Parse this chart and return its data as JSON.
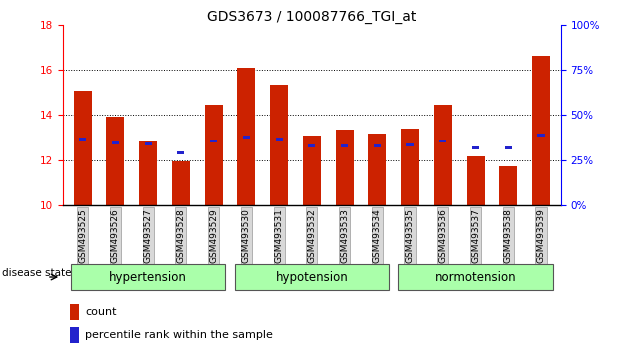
{
  "title": "GDS3673 / 100087766_TGI_at",
  "samples": [
    "GSM493525",
    "GSM493526",
    "GSM493527",
    "GSM493528",
    "GSM493529",
    "GSM493530",
    "GSM493531",
    "GSM493532",
    "GSM493533",
    "GSM493534",
    "GSM493535",
    "GSM493536",
    "GSM493537",
    "GSM493538",
    "GSM493539"
  ],
  "bar_heights": [
    15.05,
    13.9,
    12.85,
    11.95,
    14.45,
    16.1,
    15.35,
    13.05,
    13.35,
    13.15,
    13.4,
    14.45,
    12.2,
    11.75,
    16.6
  ],
  "blue_y": [
    12.9,
    12.8,
    12.75,
    12.35,
    12.85,
    13.0,
    12.9,
    12.65,
    12.65,
    12.65,
    12.7,
    12.85,
    12.55,
    12.55,
    13.1
  ],
  "ymin": 10,
  "ymax": 18,
  "yticks_left": [
    10,
    12,
    14,
    16,
    18
  ],
  "yticks_right": [
    0,
    25,
    50,
    75,
    100
  ],
  "bar_color": "#cc2200",
  "blue_color": "#2222cc",
  "bar_width": 0.55,
  "group_labels": [
    "hypertension",
    "hypotension",
    "normotension"
  ],
  "group_ranges": [
    [
      0,
      4
    ],
    [
      5,
      9
    ],
    [
      10,
      14
    ]
  ],
  "group_color": "#aaffaa",
  "disease_state_label": "disease state",
  "legend_count_label": "count",
  "legend_percentile_label": "percentile rank within the sample",
  "title_fontsize": 10,
  "tick_fontsize": 7.5,
  "xtick_fontsize": 6.5,
  "group_fontsize": 8.5,
  "legend_fontsize": 8
}
